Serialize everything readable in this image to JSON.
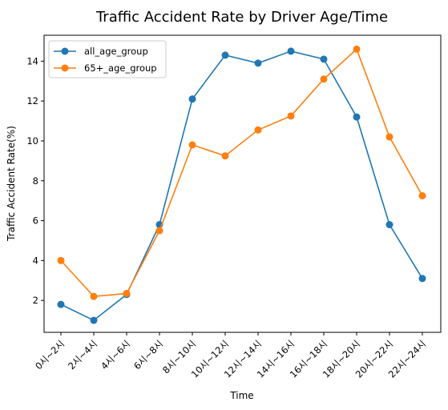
{
  "chart_data": {
    "type": "line",
    "title": "Traffic Accident Rate by Driver Age/Time",
    "xlabel": "Time",
    "ylabel": "Traffic Accident Rate(%)",
    "categories": [
      "0시~2시",
      "2시~4시",
      "4시~6시",
      "6시~8시",
      "8시~10시",
      "10시~12시",
      "12시~14시",
      "14시~16시",
      "16시~18시",
      "18시~20시",
      "20시~22시",
      "22시~24시"
    ],
    "ylim": [
      0.4,
      15.3
    ],
    "yticks": [
      2,
      4,
      6,
      8,
      10,
      12,
      14
    ],
    "grid": false,
    "legend_position": "upper-left",
    "series": [
      {
        "name": "all_age_group",
        "color": "#1f77b4",
        "values": [
          1.8,
          1.0,
          2.3,
          5.8,
          12.1,
          14.3,
          13.9,
          14.5,
          14.1,
          11.2,
          5.8,
          3.1
        ]
      },
      {
        "name": "65+_age_group",
        "color": "#ff7f0e",
        "values": [
          4.0,
          2.2,
          2.35,
          5.5,
          9.8,
          9.25,
          10.55,
          11.25,
          13.1,
          14.6,
          10.2,
          7.25
        ]
      }
    ]
  }
}
